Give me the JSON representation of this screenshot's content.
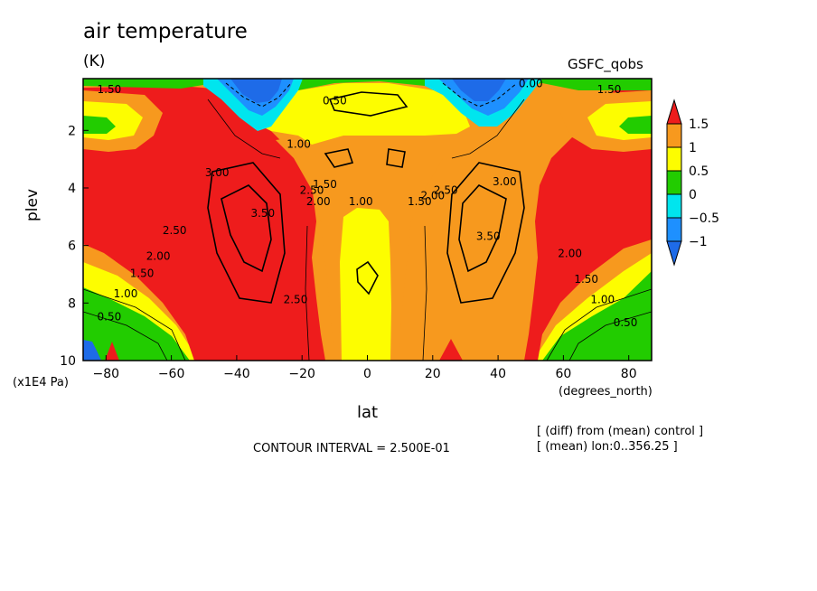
{
  "chart_data": {
    "type": "heatmap",
    "title": "air temperature",
    "units": "(K)",
    "model": "GSFC_qobs",
    "xlabel": "lat",
    "xunit": "(degrees_north)",
    "ylabel": "plev",
    "yunit": "(x1E4 Pa)",
    "xlim": [
      -87,
      87
    ],
    "ylim": [
      10,
      0.2
    ],
    "x_ticks": [
      -80,
      -60,
      -40,
      -20,
      0,
      20,
      40,
      60,
      80
    ],
    "y_ticks": [
      2,
      4,
      6,
      8,
      10
    ],
    "contour_interval_text": "CONTOUR INTERVAL = 2.500E-01",
    "notes": [
      "[ (diff) from (mean) control ]",
      "[ (mean) lon:0..356.25 ]"
    ],
    "colorbar": {
      "ticks": [
        "1.5",
        "1",
        "0.5",
        "0",
        "−0.5",
        "−1"
      ],
      "bins": [
        {
          "range": "> 1.5",
          "color": "#ee1c1c"
        },
        {
          "range": "1 to 1.5",
          "color": "#f7991e"
        },
        {
          "range": "0.5 to 1",
          "color": "#fdfd00"
        },
        {
          "range": "0 to 0.5",
          "color": "#22cc00"
        },
        {
          "range": "-0.5 to 0",
          "color": "#00e5ee"
        },
        {
          "range": "-1 to -0.5",
          "color": "#1e90ff"
        },
        {
          "range": "< -1",
          "color": "#1e6be8"
        }
      ]
    },
    "contour_labels": [
      {
        "text": "1.50",
        "lat": -79,
        "plev": 0.7
      },
      {
        "text": "0.50",
        "lat": -10,
        "plev": 1.1
      },
      {
        "text": "0.00",
        "lat": 50,
        "plev": 0.5
      },
      {
        "text": "1.50",
        "lat": 74,
        "plev": 0.7
      },
      {
        "text": "1.00",
        "lat": -21,
        "plev": 2.6
      },
      {
        "text": "3.00",
        "lat": -46,
        "plev": 3.6
      },
      {
        "text": "3.50",
        "lat": -32,
        "plev": 5.0
      },
      {
        "text": "2.50",
        "lat": -17,
        "plev": 4.2
      },
      {
        "text": "2.00",
        "lat": -15,
        "plev": 4.6
      },
      {
        "text": "1.50",
        "lat": -13,
        "plev": 4.0
      },
      {
        "text": "1.00",
        "lat": -2,
        "plev": 4.6
      },
      {
        "text": "1.50",
        "lat": 16,
        "plev": 4.6
      },
      {
        "text": "2.00",
        "lat": 20,
        "plev": 4.4
      },
      {
        "text": "2.50",
        "lat": 24,
        "plev": 4.2
      },
      {
        "text": "3.00",
        "lat": 42,
        "plev": 3.9
      },
      {
        "text": "3.50",
        "lat": 37,
        "plev": 5.8
      },
      {
        "text": "2.50",
        "lat": -59,
        "plev": 5.6
      },
      {
        "text": "2.00",
        "lat": -64,
        "plev": 6.5
      },
      {
        "text": "1.50",
        "lat": -69,
        "plev": 7.1
      },
      {
        "text": "1.00",
        "lat": -74,
        "plev": 7.8
      },
      {
        "text": "0.50",
        "lat": -79,
        "plev": 8.6
      },
      {
        "text": "2.50",
        "lat": -22,
        "plev": 8.0
      },
      {
        "text": "2.00",
        "lat": 62,
        "plev": 6.4
      },
      {
        "text": "1.50",
        "lat": 67,
        "plev": 7.3
      },
      {
        "text": "1.00",
        "lat": 72,
        "plev": 8.0
      },
      {
        "text": "0.50",
        "lat": 79,
        "plev": 8.8
      }
    ]
  }
}
